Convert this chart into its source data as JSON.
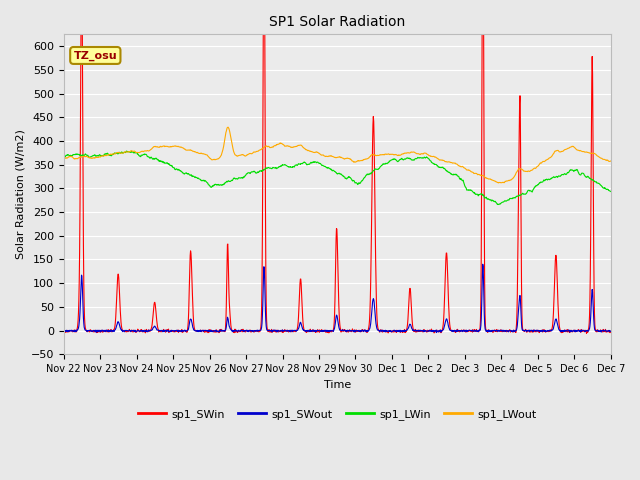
{
  "title": "SP1 Solar Radiation",
  "xlabel": "Time",
  "ylabel": "Solar Radiation (W/m2)",
  "ylim": [
    -50,
    625
  ],
  "yticks": [
    -50,
    0,
    50,
    100,
    150,
    200,
    250,
    300,
    350,
    400,
    450,
    500,
    550,
    600
  ],
  "background_color": "#e8e8e8",
  "plot_background": "#ebebeb",
  "series_colors": {
    "sp1_SWin": "#ff0000",
    "sp1_SWout": "#0000cc",
    "sp1_LWin": "#00dd00",
    "sp1_LWout": "#ffaa00"
  },
  "annotation_text": "TZ_osu",
  "annotation_bg": "#ffff99",
  "annotation_border": "#aa8800",
  "annotation_text_color": "#990000",
  "n_days": 15,
  "points_per_day": 96
}
